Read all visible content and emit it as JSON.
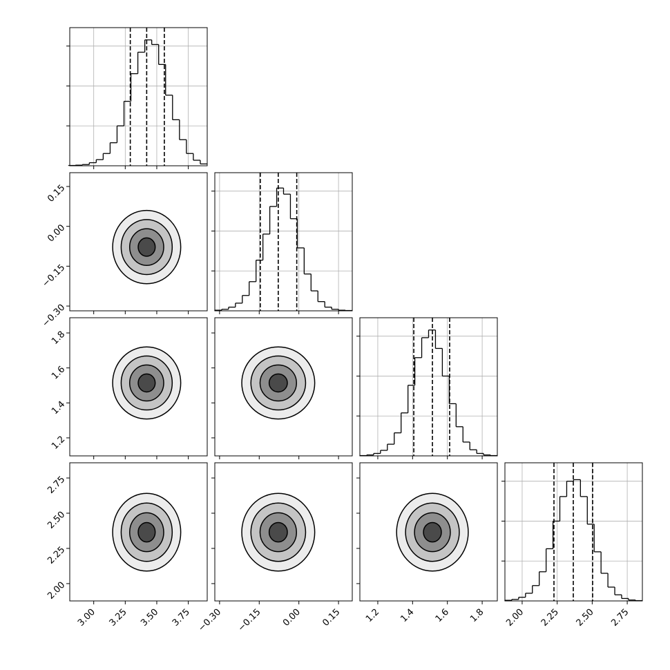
{
  "chart_data": {
    "type": "corner",
    "grid": true,
    "line_color": "#000000",
    "hist_ylim": [
      0,
      450
    ],
    "hist_yticks": [
      130,
      260,
      390
    ],
    "parameters": [
      {
        "xlim": [
          2.81,
          3.9
        ],
        "xticks": [
          {
            "value": 3.0,
            "label": "3.00"
          },
          {
            "value": 3.25,
            "label": "3.25"
          },
          {
            "value": 3.5,
            "label": "3.50"
          },
          {
            "value": 3.75,
            "label": "3.75"
          }
        ],
        "quantiles": [
          3.29,
          3.42,
          3.56
        ],
        "bins": [
          2.8,
          2.855,
          2.91,
          2.965,
          3.02,
          3.075,
          3.13,
          3.185,
          3.24,
          3.295,
          3.35,
          3.405,
          3.46,
          3.515,
          3.57,
          3.625,
          3.68,
          3.735,
          3.79,
          3.845,
          3.9
        ],
        "counts": [
          1,
          2,
          4,
          10,
          20,
          40,
          75,
          130,
          210,
          300,
          370,
          410,
          395,
          330,
          230,
          150,
          85,
          40,
          18,
          6
        ]
      },
      {
        "xlim": [
          -0.318,
          0.202
        ],
        "xticks": [
          {
            "value": -0.3,
            "label": "−0.30"
          },
          {
            "value": -0.15,
            "label": "−0.15"
          },
          {
            "value": 0.0,
            "label": "0.00"
          },
          0.15
        ],
        "quantiles": [
          -0.146,
          -0.078,
          -0.008
        ],
        "bins": [
          -0.318,
          -0.292,
          -0.266,
          -0.24,
          -0.214,
          -0.188,
          -0.162,
          -0.136,
          -0.11,
          -0.084,
          -0.058,
          -0.032,
          -0.006,
          0.02,
          0.046,
          0.072,
          0.098,
          0.124,
          0.15,
          0.176,
          0.202
        ],
        "counts": [
          2,
          5,
          12,
          25,
          50,
          95,
          165,
          250,
          340,
          400,
          380,
          300,
          205,
          120,
          65,
          30,
          12,
          5,
          2,
          1
        ]
      },
      {
        "xlim": [
          1.097,
          1.887
        ],
        "xticks": [
          1.2,
          1.4,
          1.6,
          1.8
        ],
        "quantiles": [
          1.407,
          1.514,
          1.613
        ],
        "bins": [
          1.097,
          1.1365,
          1.176,
          1.2155,
          1.255,
          1.2945,
          1.334,
          1.3735,
          1.413,
          1.4525,
          1.492,
          1.5315,
          1.571,
          1.6105,
          1.65,
          1.6895,
          1.729,
          1.7685,
          1.808,
          1.8475,
          1.887
        ],
        "counts": [
          1,
          3,
          8,
          18,
          38,
          75,
          140,
          230,
          320,
          385,
          410,
          350,
          260,
          170,
          95,
          45,
          20,
          8,
          3,
          1
        ]
      },
      {
        "xlim": [
          1.877,
          2.858
        ],
        "xticks": [
          {
            "value": 2.0,
            "label": "2.00"
          },
          {
            "value": 2.25,
            "label": "2.25"
          },
          {
            "value": 2.5,
            "label": "2.50"
          },
          {
            "value": 2.75,
            "label": "2.75"
          }
        ],
        "quantiles": [
          2.227,
          2.365,
          2.503
        ],
        "bins": [
          1.877,
          1.926,
          1.975,
          2.024,
          2.073,
          2.122,
          2.171,
          2.22,
          2.269,
          2.318,
          2.367,
          2.416,
          2.465,
          2.514,
          2.563,
          2.612,
          2.661,
          2.71,
          2.759,
          2.808,
          2.857
        ],
        "counts": [
          2,
          5,
          12,
          25,
          50,
          95,
          170,
          260,
          340,
          390,
          395,
          340,
          250,
          160,
          90,
          45,
          20,
          8,
          3,
          1
        ]
      }
    ]
  }
}
